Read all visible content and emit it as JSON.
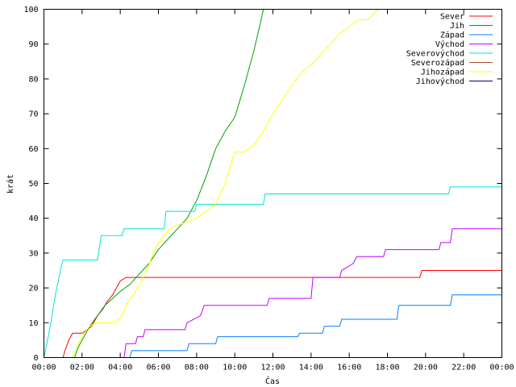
{
  "chart_data": {
    "type": "line",
    "xlabel": "Čas",
    "ylabel": "krát",
    "xlim": [
      0,
      24
    ],
    "ylim": [
      0,
      100
    ],
    "x_ticks": [
      {
        "value": 0,
        "label": "00:00"
      },
      {
        "value": 2,
        "label": "02:00"
      },
      {
        "value": 4,
        "label": "04:00"
      },
      {
        "value": 6,
        "label": "06:00"
      },
      {
        "value": 8,
        "label": "08:00"
      },
      {
        "value": 10,
        "label": "10:00"
      },
      {
        "value": 12,
        "label": "12:00"
      },
      {
        "value": 14,
        "label": "14:00"
      },
      {
        "value": 16,
        "label": "16:00"
      },
      {
        "value": 18,
        "label": "18:00"
      },
      {
        "value": 20,
        "label": "20:00"
      },
      {
        "value": 22,
        "label": "22:00"
      },
      {
        "value": 24,
        "label": "00:00"
      }
    ],
    "y_ticks": [
      0,
      10,
      20,
      30,
      40,
      50,
      60,
      70,
      80,
      90,
      100
    ],
    "grid": false,
    "legend_position": "top-right",
    "series": [
      {
        "name": "Sever",
        "color": "#ff0000",
        "x": [
          0,
          1.0,
          1.1,
          1.3,
          1.5,
          2.0,
          2.5,
          2.8,
          3.1,
          3.3,
          3.6,
          3.8,
          4.0,
          4.3,
          19.7,
          19.8,
          24
        ],
        "y": [
          0,
          0,
          2,
          5,
          7,
          7,
          9,
          12,
          14,
          16,
          18,
          20,
          22,
          23,
          23,
          25,
          25
        ]
      },
      {
        "name": "Jih",
        "color": "#00a000",
        "x": [
          0,
          1.6,
          1.8,
          2.1,
          2.4,
          2.8,
          3.2,
          3.6,
          4.0,
          4.5,
          5.0,
          5.5,
          6.0,
          6.5,
          7.0,
          7.5,
          8.0,
          8.5,
          9.0,
          9.5,
          10.0,
          10.5,
          11.0,
          11.3,
          11.5,
          24
        ],
        "y": [
          0,
          0,
          3,
          6,
          9,
          12,
          15,
          17,
          19,
          21,
          24,
          27,
          31,
          34,
          37,
          40,
          45,
          52,
          60,
          65,
          69,
          78,
          88,
          95,
          100,
          100
        ]
      },
      {
        "name": "Západ",
        "color": "#0080ff",
        "x": [
          0,
          4.5,
          4.6,
          7.5,
          7.6,
          9.0,
          9.1,
          13.3,
          13.4,
          14.6,
          14.7,
          15.5,
          15.6,
          18.5,
          18.6,
          21.3,
          21.4,
          24
        ],
        "y": [
          0,
          0,
          2,
          2,
          4,
          4,
          6,
          6,
          7,
          7,
          9,
          9,
          11,
          11,
          15,
          15,
          18,
          18
        ]
      },
      {
        "name": "Východ",
        "color": "#c000ff",
        "x": [
          0,
          4.2,
          4.3,
          4.8,
          4.9,
          5.2,
          5.3,
          7.4,
          7.5,
          8.2,
          8.4,
          11.7,
          11.8,
          14.0,
          14.1,
          15.5,
          15.6,
          16.2,
          16.4,
          17.8,
          17.9,
          20.7,
          20.8,
          21.3,
          21.4,
          24
        ],
        "y": [
          0,
          0,
          4,
          4,
          6,
          6,
          8,
          8,
          10,
          12,
          15,
          15,
          17,
          17,
          23,
          23,
          25,
          27,
          29,
          29,
          31,
          31,
          33,
          33,
          37,
          37
        ]
      },
      {
        "name": "Severovýchod",
        "color": "#00e0e0",
        "x": [
          0,
          0.3,
          0.6,
          0.9,
          1.0,
          1.2,
          2.8,
          3.0,
          3.2,
          4.1,
          4.2,
          6.3,
          6.4,
          7.9,
          8.0,
          11.5,
          11.6,
          21.2,
          21.3,
          24
        ],
        "y": [
          0,
          8,
          18,
          26,
          28,
          28,
          28,
          35,
          35,
          35,
          37,
          37,
          42,
          42,
          44,
          44,
          47,
          47,
          49,
          49
        ]
      },
      {
        "name": "Severozápad",
        "color": "#b05030",
        "x": [
          0,
          24
        ],
        "y": [
          0,
          0
        ]
      },
      {
        "name": "Jihozápad",
        "color": "#ffff00",
        "x": [
          0,
          1.5,
          1.8,
          2.1,
          2.4,
          2.8,
          3.3,
          3.8,
          4.1,
          4.4,
          4.7,
          5.0,
          5.3,
          5.6,
          5.9,
          6.3,
          6.6,
          7.0,
          7.5,
          8.0,
          8.5,
          9.0,
          9.5,
          10.0,
          10.5,
          11.0,
          11.5,
          12.0,
          12.5,
          13.0,
          13.5,
          14.0,
          14.5,
          15.0,
          15.5,
          16.0,
          16.5,
          17.0,
          17.5,
          24
        ],
        "y": [
          0,
          0,
          4,
          7,
          9,
          10,
          10,
          10,
          12,
          16,
          18,
          21,
          24,
          28,
          32,
          35,
          37,
          38,
          39,
          40,
          42,
          44,
          50,
          59,
          59,
          61,
          65,
          70,
          74,
          78,
          82,
          84,
          87,
          90,
          93,
          95,
          97,
          97,
          100,
          100
        ]
      },
      {
        "name": "Jihovýchod",
        "color": "#000080",
        "x": [
          0,
          24
        ],
        "y": [
          0,
          0
        ]
      }
    ]
  }
}
